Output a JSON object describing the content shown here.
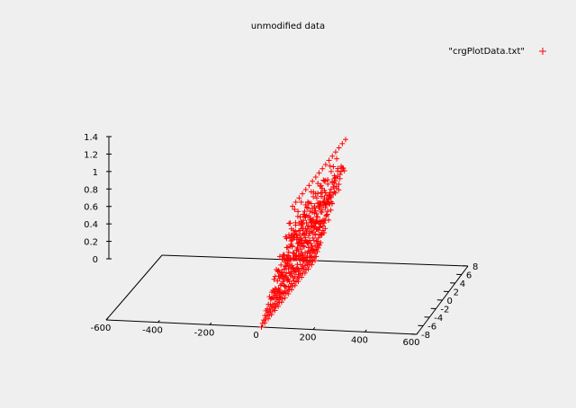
{
  "chart_data": {
    "type": "scatter",
    "plot_style": "3d-splot",
    "title": "unmodified data",
    "legend": {
      "label": "\"crgPlotData.txt\"",
      "marker": "+",
      "color": "#ff0000",
      "placement": "top-right"
    },
    "x_axis": {
      "range": [
        -600,
        600
      ],
      "ticks": [
        -600,
        -400,
        -200,
        0,
        200,
        400,
        600
      ]
    },
    "y_axis": {
      "range": [
        -8,
        8
      ],
      "ticks": [
        -8,
        -6,
        -4,
        -2,
        0,
        2,
        4,
        6,
        8
      ]
    },
    "z_axis": {
      "range": [
        0,
        1.4
      ],
      "ticks": [
        "0",
        "0.2",
        "0.4",
        "0.6",
        "0.8",
        "1",
        "1.2",
        "1.4"
      ]
    },
    "series": [
      {
        "name": "\"crgPlotData.txt\"",
        "x_range": [
          0,
          120
        ],
        "y_range": [
          -8,
          8
        ],
        "z_profile": "ramp from 0 to 1.4 along x with a noisy interior",
        "x_steps": 28,
        "y_steps": 17
      }
    ]
  }
}
